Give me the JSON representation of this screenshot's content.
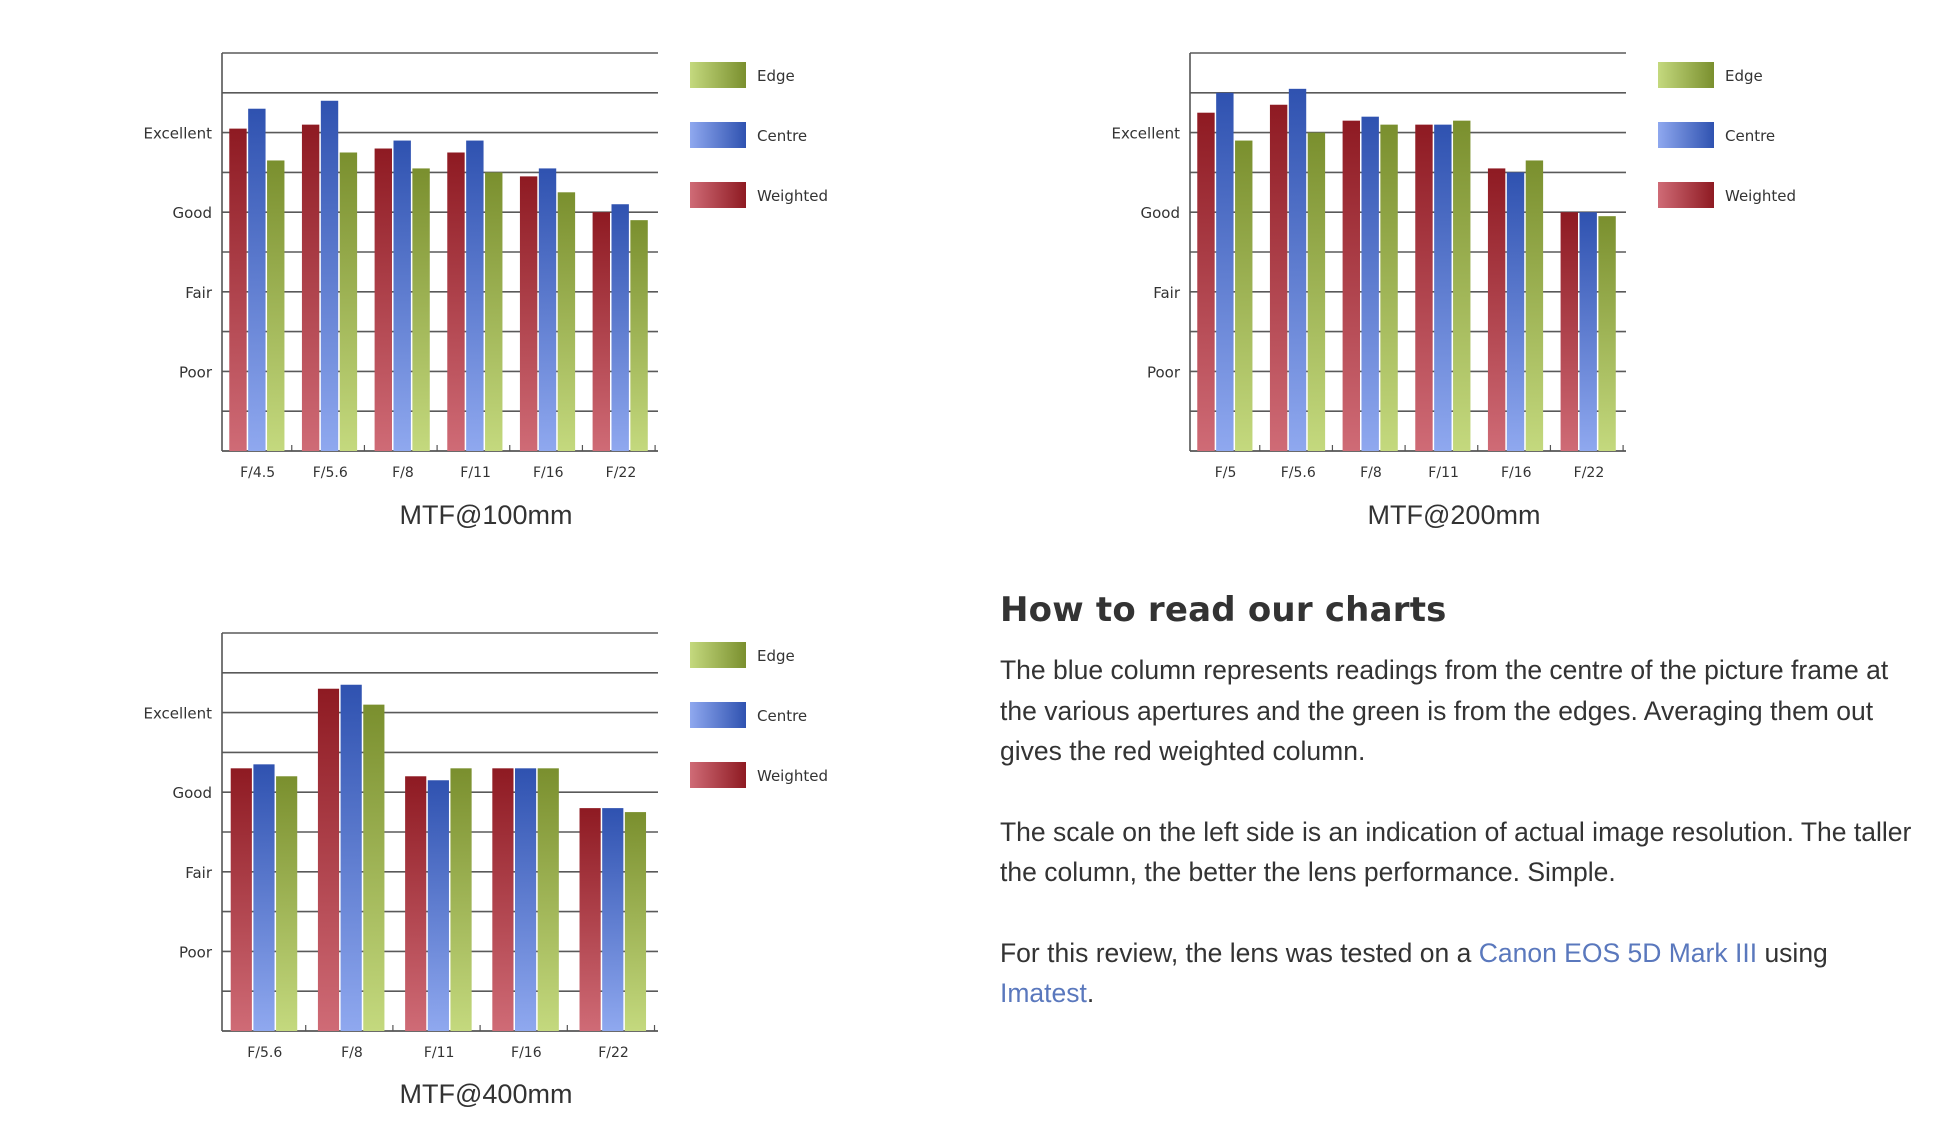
{
  "charts": [
    {
      "caption": "MTF@100mm"
    },
    {
      "caption": "MTF@200mm"
    },
    {
      "caption": "MTF@400mm"
    }
  ],
  "colors": {
    "weighted_top": "#8e1a22",
    "weighted_bottom": "#cf6b76",
    "centre_top": "#2f52b0",
    "centre_bottom": "#8fa8ef",
    "edge_top": "#7a8f2e",
    "edge_bottom": "#c4d97e",
    "link": "#5a78bd",
    "text": "#333333"
  },
  "article": {
    "heading": "How to read our charts",
    "para1": "The blue column represents readings from the centre of the picture frame at the various apertures and the green is from the edges. Averaging them out gives the red weighted column.",
    "para2": "The scale on the left side is an indication of actual image resolution. The taller the column, the better the lens performance. Simple.",
    "para3_before": "For this review, the lens was tested on a ",
    "para3_link1": "Canon EOS 5D Mark III",
    "para3_middle": " using ",
    "para3_link2": "Imatest",
    "para3_after": "."
  },
  "chart_data": [
    {
      "type": "bar",
      "title": "MTF@100mm",
      "categories": [
        "F/4.5",
        "F/5.6",
        "F/8",
        "F/11",
        "F/16",
        "F/22"
      ],
      "y_tick_labels": [
        "Poor",
        "Fair",
        "Good",
        "Excellent"
      ],
      "y_tick_values": [
        2,
        4,
        6,
        8
      ],
      "ylim": [
        0,
        10
      ],
      "grid": true,
      "legend": "right",
      "legend_entries": [
        "Edge",
        "Centre",
        "Weighted"
      ],
      "series": [
        {
          "name": "Weighted",
          "values": [
            8.1,
            8.2,
            7.6,
            7.5,
            6.9,
            6.0
          ]
        },
        {
          "name": "Centre",
          "values": [
            8.6,
            8.8,
            7.8,
            7.8,
            7.1,
            6.2
          ]
        },
        {
          "name": "Edge",
          "values": [
            7.3,
            7.5,
            7.1,
            7.0,
            6.5,
            5.8
          ]
        }
      ]
    },
    {
      "type": "bar",
      "title": "MTF@200mm",
      "categories": [
        "F/5",
        "F/5.6",
        "F/8",
        "F/11",
        "F/16",
        "F/22"
      ],
      "y_tick_labels": [
        "Poor",
        "Fair",
        "Good",
        "Excellent"
      ],
      "y_tick_values": [
        2,
        4,
        6,
        8
      ],
      "ylim": [
        0,
        10
      ],
      "grid": true,
      "legend": "right",
      "legend_entries": [
        "Edge",
        "Centre",
        "Weighted"
      ],
      "series": [
        {
          "name": "Weighted",
          "values": [
            8.5,
            8.7,
            8.3,
            8.2,
            7.1,
            6.0
          ]
        },
        {
          "name": "Centre",
          "values": [
            9.0,
            9.1,
            8.4,
            8.2,
            7.0,
            6.0
          ]
        },
        {
          "name": "Edge",
          "values": [
            7.8,
            8.0,
            8.2,
            8.3,
            7.3,
            5.9
          ]
        }
      ]
    },
    {
      "type": "bar",
      "title": "MTF@400mm",
      "categories": [
        "F/5.6",
        "F/8",
        "F/11",
        "F/16",
        "F/22"
      ],
      "y_tick_labels": [
        "Poor",
        "Fair",
        "Good",
        "Excellent"
      ],
      "y_tick_values": [
        2,
        4,
        6,
        8
      ],
      "ylim": [
        0,
        10
      ],
      "grid": true,
      "legend": "right",
      "legend_entries": [
        "Edge",
        "Centre",
        "Weighted"
      ],
      "series": [
        {
          "name": "Weighted",
          "values": [
            6.6,
            8.6,
            6.4,
            6.6,
            5.6
          ]
        },
        {
          "name": "Centre",
          "values": [
            6.7,
            8.7,
            6.3,
            6.6,
            5.6
          ]
        },
        {
          "name": "Edge",
          "values": [
            6.4,
            8.2,
            6.6,
            6.6,
            5.5
          ]
        }
      ]
    }
  ]
}
